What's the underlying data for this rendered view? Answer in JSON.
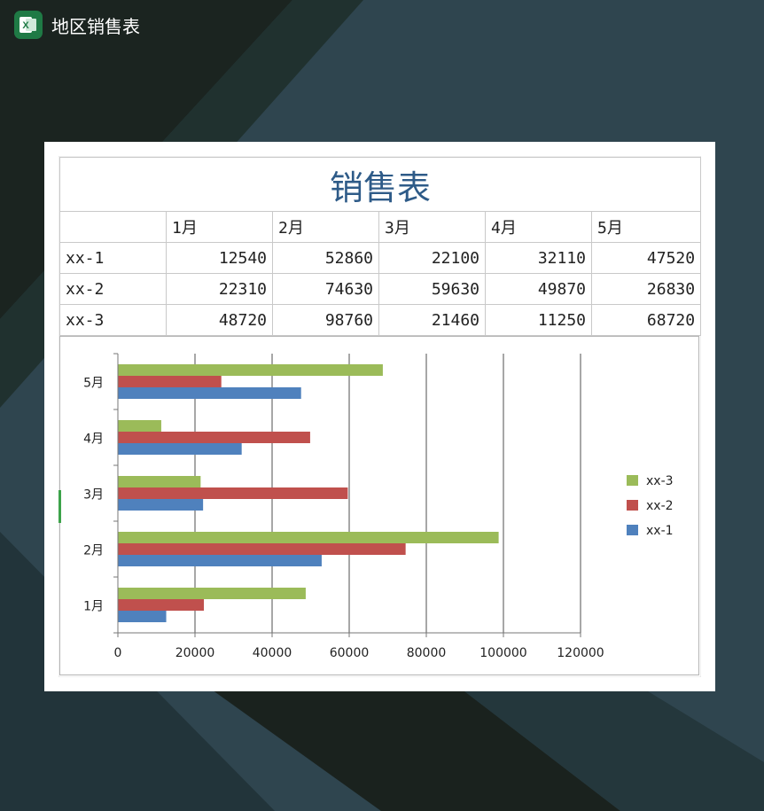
{
  "app": {
    "title": "地区销售表",
    "icon": "excel-icon"
  },
  "table": {
    "title": "销售表",
    "months": [
      "1月",
      "2月",
      "3月",
      "4月",
      "5月"
    ],
    "rows": [
      {
        "name": "xx-1",
        "values": [
          "12540",
          "52860",
          "22100",
          "32110",
          "47520"
        ]
      },
      {
        "name": "xx-2",
        "values": [
          "22310",
          "74630",
          "59630",
          "49870",
          "26830"
        ]
      },
      {
        "name": "xx-3",
        "values": [
          "48720",
          "98760",
          "21460",
          "11250",
          "68720"
        ]
      }
    ]
  },
  "chart_data": {
    "type": "bar",
    "orientation": "horizontal",
    "categories": [
      "1月",
      "2月",
      "3月",
      "4月",
      "5月"
    ],
    "series": [
      {
        "name": "xx-1",
        "color": "#4f81bd",
        "values": [
          12540,
          52860,
          22100,
          32110,
          47520
        ]
      },
      {
        "name": "xx-2",
        "color": "#c0504d",
        "values": [
          22310,
          74630,
          59630,
          49870,
          26830
        ]
      },
      {
        "name": "xx-3",
        "color": "#9bbb59",
        "values": [
          48720,
          98760,
          21460,
          11250,
          68720
        ]
      }
    ],
    "xlim": [
      0,
      120000
    ],
    "xticks": [
      0,
      20000,
      40000,
      60000,
      80000,
      100000,
      120000
    ],
    "grid": true,
    "legend": "right"
  }
}
